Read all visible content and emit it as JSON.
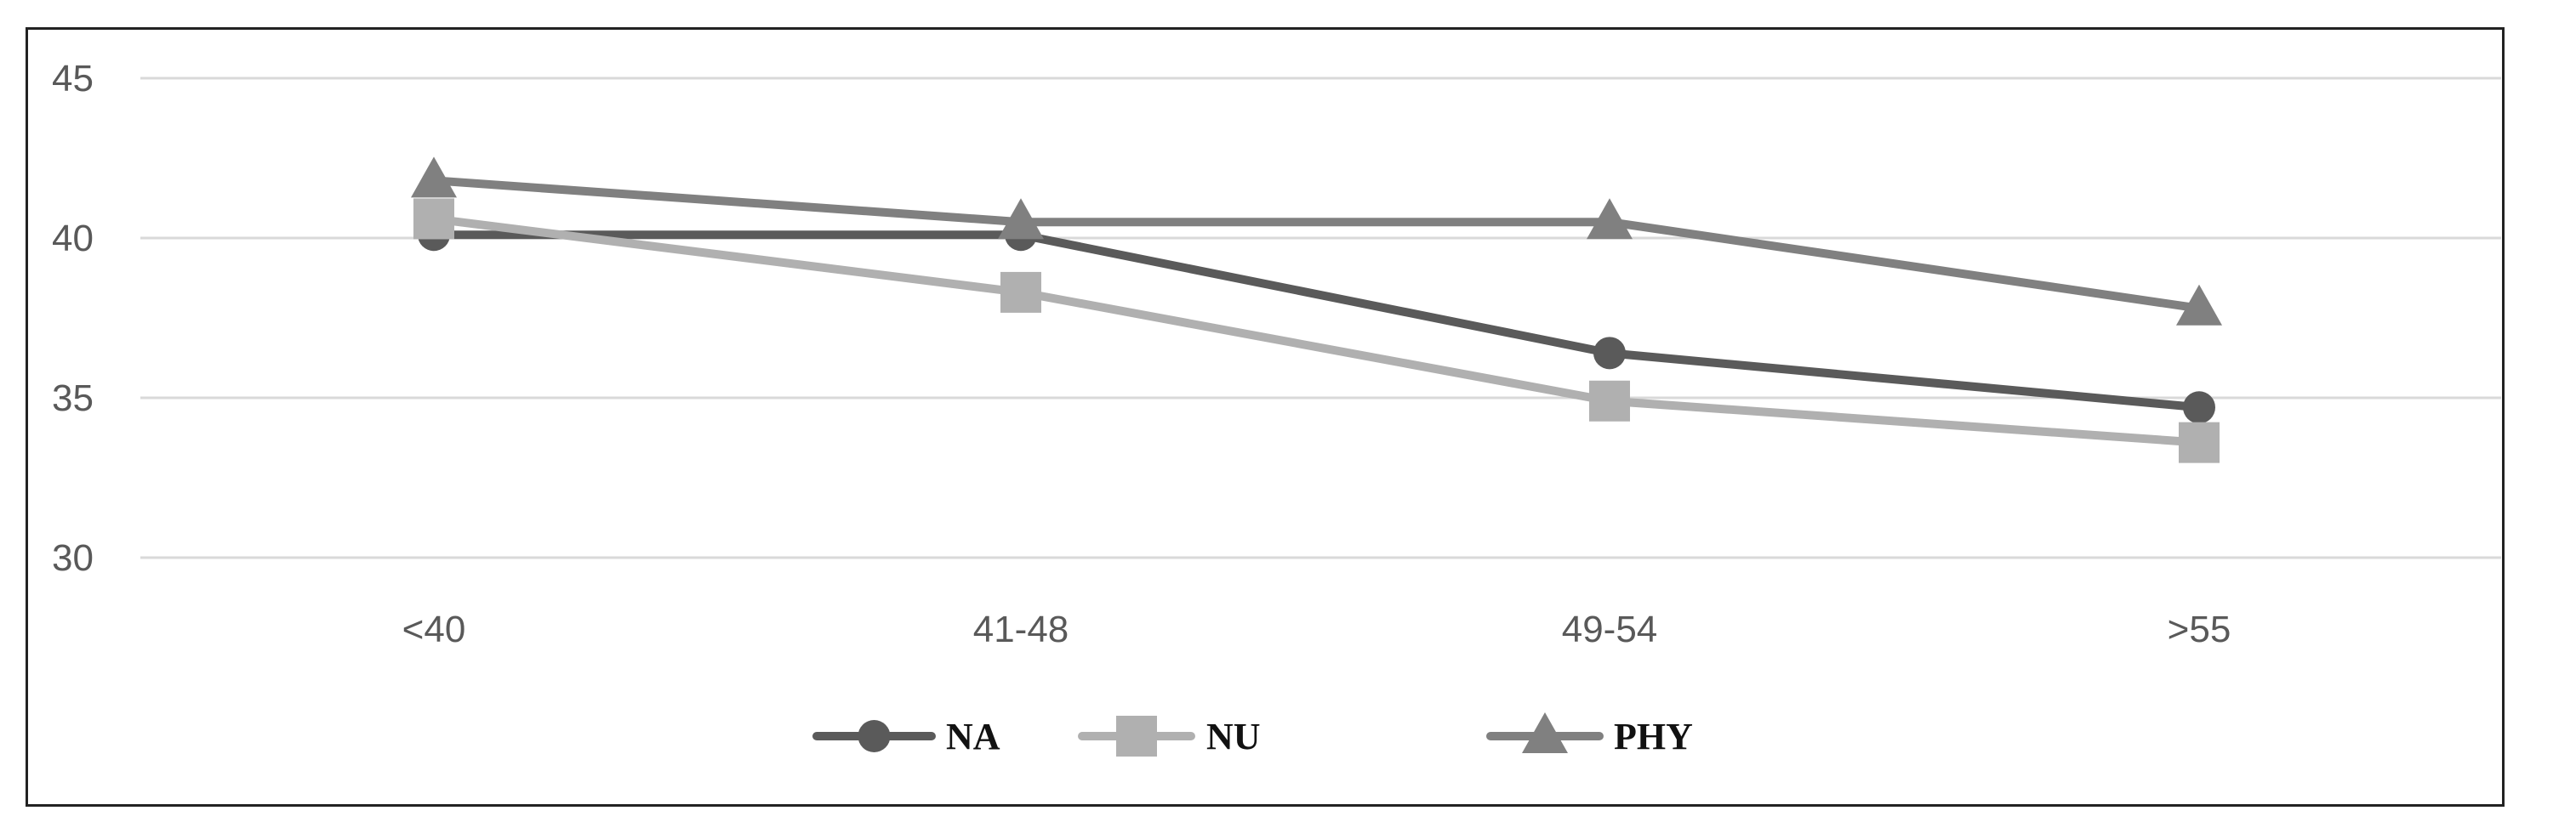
{
  "chart_data": {
    "type": "line",
    "title": "",
    "xlabel": "",
    "ylabel": "",
    "categories": [
      "<40",
      "41-48",
      "49-54",
      ">55"
    ],
    "ylim": [
      30,
      45
    ],
    "yticks": [
      30,
      35,
      40,
      45
    ],
    "grid": "horizontal",
    "legend_position": "bottom",
    "series": [
      {
        "name": "NA",
        "values": [
          40.1,
          40.1,
          36.4,
          34.7
        ],
        "color": "#5a5a5a",
        "marker": "circle"
      },
      {
        "name": "NU",
        "values": [
          40.6,
          38.3,
          34.9,
          33.6
        ],
        "color": "#b0b0b0",
        "marker": "square"
      },
      {
        "name": "PHY",
        "values": [
          41.8,
          40.5,
          40.5,
          37.8
        ],
        "color": "#808080",
        "marker": "triangle"
      }
    ]
  }
}
